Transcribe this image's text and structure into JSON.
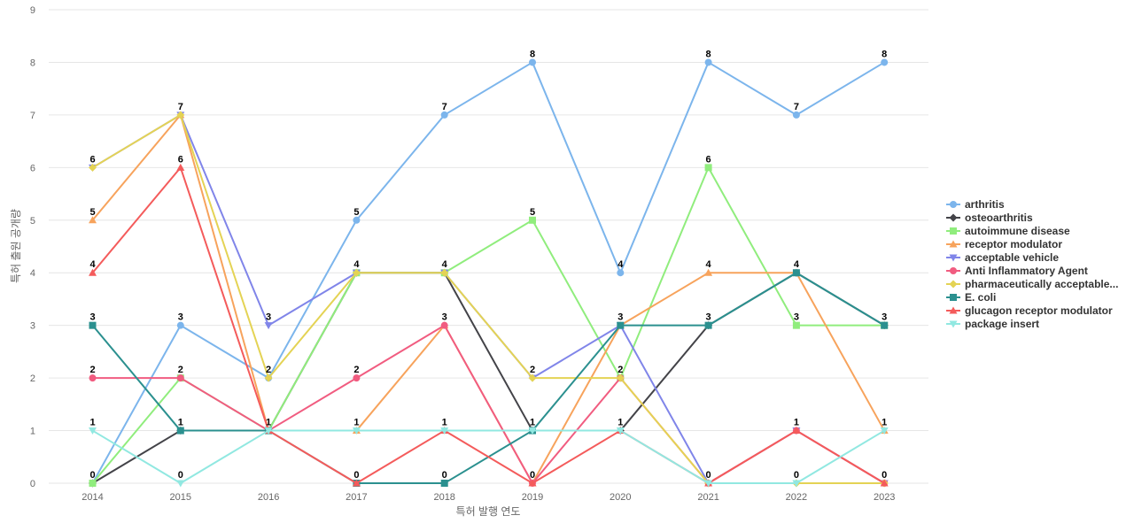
{
  "chart_data": {
    "type": "line",
    "xlabel": "특허 발행 연도",
    "ylabel": "특허 출원 공개량",
    "ylim": [
      0,
      9
    ],
    "yticks": [
      0,
      1,
      2,
      3,
      4,
      5,
      6,
      7,
      8,
      9
    ],
    "categories": [
      "2014",
      "2015",
      "2016",
      "2017",
      "2018",
      "2019",
      "2020",
      "2021",
      "2022",
      "2023"
    ],
    "grid": true,
    "legend_position": "right",
    "series": [
      {
        "name": "arthritis",
        "color": "#7cb5ec",
        "marker": "circle",
        "values": [
          0,
          3,
          2,
          5,
          7,
          8,
          4,
          8,
          7,
          8
        ]
      },
      {
        "name": "osteoarthritis",
        "color": "#434348",
        "marker": "diamond",
        "values": [
          0,
          1,
          1,
          4,
          4,
          1,
          1,
          3,
          4,
          3
        ]
      },
      {
        "name": "autoimmune disease",
        "color": "#90ed7d",
        "marker": "square",
        "values": [
          0,
          2,
          1,
          4,
          4,
          5,
          2,
          6,
          3,
          3
        ]
      },
      {
        "name": "receptor modulator",
        "color": "#f7a35c",
        "marker": "triangle",
        "values": [
          5,
          7,
          1,
          1,
          3,
          0,
          3,
          4,
          4,
          1
        ]
      },
      {
        "name": "acceptable vehicle",
        "color": "#8085e9",
        "marker": "triangle-down",
        "values": [
          6,
          7,
          3,
          4,
          4,
          2,
          3,
          0,
          1,
          0
        ]
      },
      {
        "name": "Anti Inflammatory Agent",
        "color": "#f15c80",
        "marker": "circle",
        "values": [
          2,
          2,
          1,
          2,
          3,
          0,
          2,
          0,
          1,
          0
        ]
      },
      {
        "name": "pharmaceutically acceptable...",
        "color": "#e4d354",
        "marker": "diamond",
        "values": [
          6,
          7,
          2,
          4,
          4,
          2,
          2,
          0,
          0,
          0
        ]
      },
      {
        "name": "E. coli",
        "color": "#2b908f",
        "marker": "square",
        "values": [
          3,
          1,
          1,
          0,
          0,
          1,
          3,
          3,
          4,
          3
        ]
      },
      {
        "name": "glucagon receptor modulator",
        "color": "#f45b5b",
        "marker": "triangle",
        "values": [
          4,
          6,
          1,
          0,
          1,
          0,
          1,
          0,
          1,
          0
        ]
      },
      {
        "name": "package insert",
        "color": "#91e8e1",
        "marker": "triangle-down",
        "values": [
          1,
          0,
          1,
          1,
          1,
          1,
          1,
          0,
          0,
          1
        ]
      }
    ],
    "data_labels": [
      {
        "category": "2014",
        "text": "6",
        "value": 6
      },
      {
        "category": "2014",
        "text": "5",
        "value": 5
      },
      {
        "category": "2014",
        "text": "4",
        "value": 4
      },
      {
        "category": "2014",
        "text": "3",
        "value": 3
      },
      {
        "category": "2014",
        "text": "2",
        "value": 2
      },
      {
        "category": "2014",
        "text": "1",
        "value": 1
      },
      {
        "category": "2014",
        "text": "0",
        "value": 0
      },
      {
        "category": "2015",
        "text": "7",
        "value": 7
      },
      {
        "category": "2015",
        "text": "6",
        "value": 6
      },
      {
        "category": "2015",
        "text": "3",
        "value": 3
      },
      {
        "category": "2015",
        "text": "2",
        "value": 2
      },
      {
        "category": "2015",
        "text": "1",
        "value": 1
      },
      {
        "category": "2015",
        "text": "0",
        "value": 0
      },
      {
        "category": "2016",
        "text": "3",
        "value": 3
      },
      {
        "category": "2016",
        "text": "2",
        "value": 2
      },
      {
        "category": "2016",
        "text": "1",
        "value": 1
      },
      {
        "category": "2017",
        "text": "5",
        "value": 5
      },
      {
        "category": "2017",
        "text": "4",
        "value": 4
      },
      {
        "category": "2017",
        "text": "2",
        "value": 2
      },
      {
        "category": "2017",
        "text": "1",
        "value": 1
      },
      {
        "category": "2017",
        "text": "0",
        "value": 0
      },
      {
        "category": "2018",
        "text": "7",
        "value": 7
      },
      {
        "category": "2018",
        "text": "4",
        "value": 4
      },
      {
        "category": "2018",
        "text": "3",
        "value": 3
      },
      {
        "category": "2018",
        "text": "1",
        "value": 1
      },
      {
        "category": "2018",
        "text": "0",
        "value": 0
      },
      {
        "category": "2019",
        "text": "8",
        "value": 8
      },
      {
        "category": "2019",
        "text": "5",
        "value": 5
      },
      {
        "category": "2019",
        "text": "2",
        "value": 2
      },
      {
        "category": "2019",
        "text": "1",
        "value": 1
      },
      {
        "category": "2019",
        "text": "0",
        "value": 0
      },
      {
        "category": "2020",
        "text": "4",
        "value": 4
      },
      {
        "category": "2020",
        "text": "3",
        "value": 3
      },
      {
        "category": "2020",
        "text": "2",
        "value": 2
      },
      {
        "category": "2020",
        "text": "1",
        "value": 1
      },
      {
        "category": "2021",
        "text": "8",
        "value": 8
      },
      {
        "category": "2021",
        "text": "6",
        "value": 6
      },
      {
        "category": "2021",
        "text": "4",
        "value": 4
      },
      {
        "category": "2021",
        "text": "3",
        "value": 3
      },
      {
        "category": "2021",
        "text": "0",
        "value": 0
      },
      {
        "category": "2022",
        "text": "7",
        "value": 7
      },
      {
        "category": "2022",
        "text": "4",
        "value": 4
      },
      {
        "category": "2022",
        "text": "3",
        "value": 3
      },
      {
        "category": "2022",
        "text": "1",
        "value": 1
      },
      {
        "category": "2022",
        "text": "0",
        "value": 0
      },
      {
        "category": "2023",
        "text": "8",
        "value": 8
      },
      {
        "category": "2023",
        "text": "3",
        "value": 3
      },
      {
        "category": "2023",
        "text": "1",
        "value": 1
      },
      {
        "category": "2023",
        "text": "0",
        "value": 0
      }
    ]
  }
}
